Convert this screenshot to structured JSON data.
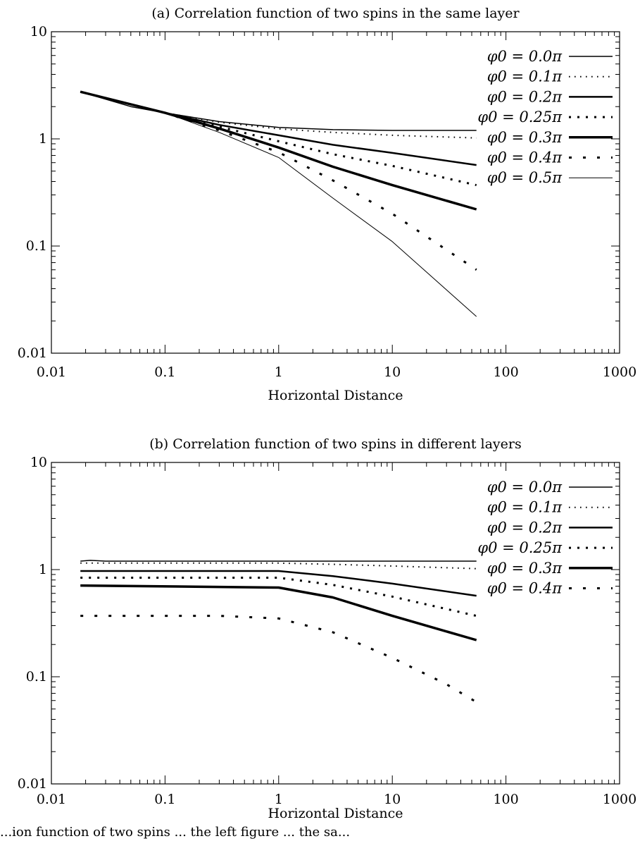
{
  "chart_data": [
    {
      "type": "line",
      "title": "(a) Correlation function of two spins in the same layer",
      "xlabel": "Horizontal Distance",
      "ylabel": "",
      "xscale": "log",
      "yscale": "log",
      "xlim": [
        0.01,
        1000
      ],
      "ylim": [
        0.01,
        10
      ],
      "xticks": [
        "0.01",
        "0.1",
        "1",
        "10",
        "100",
        "1000"
      ],
      "yticks": [
        "0.01",
        "0.1",
        "1",
        "10"
      ],
      "legend_position": "top-right",
      "series": [
        {
          "name": "φ0 = 0.0π",
          "style": "solid",
          "width": 1.5,
          "points": [
            [
              0.018,
              2.75
            ],
            [
              0.05,
              2.0
            ],
            [
              0.1,
              1.75
            ],
            [
              0.3,
              1.45
            ],
            [
              1,
              1.28
            ],
            [
              3,
              1.22
            ],
            [
              10,
              1.2
            ],
            [
              55,
              1.2
            ]
          ]
        },
        {
          "name": "φ0 = 0.1π",
          "style": "dotted-fine",
          "width": 2,
          "points": [
            [
              0.018,
              2.75
            ],
            [
              0.1,
              1.75
            ],
            [
              0.3,
              1.43
            ],
            [
              1,
              1.24
            ],
            [
              3,
              1.15
            ],
            [
              10,
              1.08
            ],
            [
              55,
              1.02
            ]
          ]
        },
        {
          "name": "φ0 = 0.2π",
          "style": "solid",
          "width": 2.5,
          "points": [
            [
              0.018,
              2.75
            ],
            [
              0.1,
              1.75
            ],
            [
              0.3,
              1.35
            ],
            [
              1,
              1.08
            ],
            [
              3,
              0.88
            ],
            [
              10,
              0.74
            ],
            [
              55,
              0.57
            ]
          ]
        },
        {
          "name": "φ0 = 0.25π",
          "style": "dotted-bold",
          "width": 3,
          "points": [
            [
              0.018,
              2.75
            ],
            [
              0.1,
              1.75
            ],
            [
              0.3,
              1.3
            ],
            [
              1,
              0.95
            ],
            [
              3,
              0.72
            ],
            [
              10,
              0.56
            ],
            [
              55,
              0.37
            ]
          ]
        },
        {
          "name": "φ0 = 0.3π",
          "style": "solid",
          "width": 3.5,
          "points": [
            [
              0.018,
              2.75
            ],
            [
              0.1,
              1.75
            ],
            [
              0.3,
              1.25
            ],
            [
              1,
              0.83
            ],
            [
              3,
              0.55
            ],
            [
              10,
              0.37
            ],
            [
              55,
              0.22
            ]
          ]
        },
        {
          "name": "φ0 = 0.4π",
          "style": "dotted-sparse",
          "width": 3,
          "points": [
            [
              0.018,
              2.75
            ],
            [
              0.1,
              1.75
            ],
            [
              0.3,
              1.2
            ],
            [
              1,
              0.75
            ],
            [
              3,
              0.41
            ],
            [
              10,
              0.2
            ],
            [
              55,
              0.06
            ]
          ]
        },
        {
          "name": "φ0 = 0.5π",
          "style": "solid",
          "width": 1,
          "points": [
            [
              0.018,
              2.75
            ],
            [
              0.1,
              1.75
            ],
            [
              0.3,
              1.15
            ],
            [
              1,
              0.67
            ],
            [
              3,
              0.28
            ],
            [
              10,
              0.11
            ],
            [
              55,
              0.022
            ]
          ]
        }
      ]
    },
    {
      "type": "line",
      "title": "(b) Correlation function of two spins in different layers",
      "xlabel": "Horizontal Distance",
      "ylabel": "",
      "xscale": "log",
      "yscale": "log",
      "xlim": [
        0.01,
        1000
      ],
      "ylim": [
        0.01,
        10
      ],
      "xticks": [
        "0.01",
        "0.1",
        "1",
        "10",
        "100",
        "1000"
      ],
      "yticks": [
        "0.01",
        "0.1",
        "1",
        "10"
      ],
      "legend_position": "top-right",
      "series": [
        {
          "name": "φ0 = 0.0π",
          "style": "solid",
          "width": 1.5,
          "points": [
            [
              0.018,
              1.2
            ],
            [
              0.022,
              1.22
            ],
            [
              0.03,
              1.2
            ],
            [
              1,
              1.2
            ],
            [
              10,
              1.2
            ],
            [
              55,
              1.2
            ]
          ]
        },
        {
          "name": "φ0 = 0.1π",
          "style": "dotted-fine",
          "width": 2,
          "points": [
            [
              0.018,
              1.15
            ],
            [
              1,
              1.15
            ],
            [
              3,
              1.12
            ],
            [
              10,
              1.08
            ],
            [
              55,
              1.02
            ]
          ]
        },
        {
          "name": "φ0 = 0.2π",
          "style": "solid",
          "width": 2.5,
          "points": [
            [
              0.018,
              0.97
            ],
            [
              1,
              0.97
            ],
            [
              3,
              0.87
            ],
            [
              10,
              0.74
            ],
            [
              55,
              0.57
            ]
          ]
        },
        {
          "name": "φ0 = 0.25π",
          "style": "dotted-bold",
          "width": 3,
          "points": [
            [
              0.018,
              0.84
            ],
            [
              1,
              0.84
            ],
            [
              3,
              0.72
            ],
            [
              10,
              0.56
            ],
            [
              55,
              0.37
            ]
          ]
        },
        {
          "name": "φ0 = 0.3π",
          "style": "solid",
          "width": 3.5,
          "points": [
            [
              0.018,
              0.71
            ],
            [
              1,
              0.68
            ],
            [
              3,
              0.55
            ],
            [
              10,
              0.37
            ],
            [
              55,
              0.22
            ]
          ]
        },
        {
          "name": "φ0 = 0.4π",
          "style": "dotted-sparse",
          "width": 3,
          "points": [
            [
              0.018,
              0.37
            ],
            [
              0.3,
              0.37
            ],
            [
              1,
              0.35
            ],
            [
              3,
              0.26
            ],
            [
              10,
              0.15
            ],
            [
              30,
              0.085
            ],
            [
              55,
              0.058
            ]
          ]
        }
      ]
    }
  ],
  "caption": "...ion function of two spins ... the left figure ... the sa..."
}
